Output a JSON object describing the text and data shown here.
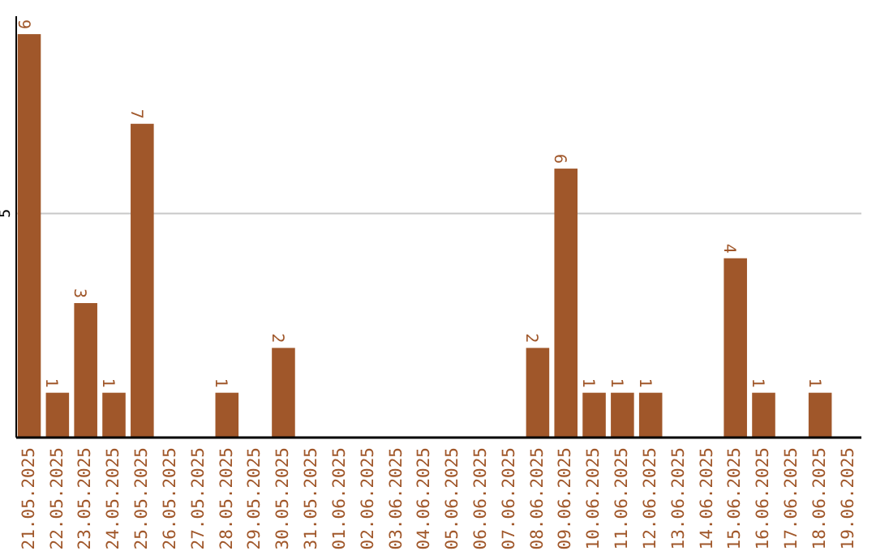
{
  "chart_data": {
    "type": "bar",
    "categories": [
      "21.05.2025",
      "22.05.2025",
      "23.05.2025",
      "24.05.2025",
      "25.05.2025",
      "26.05.2025",
      "27.05.2025",
      "28.05.2025",
      "29.05.2025",
      "30.05.2025",
      "31.05.2025",
      "01.06.2025",
      "02.06.2025",
      "03.06.2025",
      "04.06.2025",
      "05.06.2025",
      "06.06.2025",
      "07.06.2025",
      "08.06.2025",
      "09.06.2025",
      "10.06.2025",
      "11.06.2025",
      "12.06.2025",
      "13.06.2025",
      "14.06.2025",
      "15.06.2025",
      "16.06.2025",
      "17.06.2025",
      "18.06.2025",
      "19.06.2025"
    ],
    "values": [
      9,
      1,
      3,
      1,
      7,
      0,
      0,
      1,
      0,
      2,
      0,
      0,
      0,
      0,
      0,
      0,
      0,
      0,
      2,
      6,
      1,
      1,
      1,
      0,
      0,
      4,
      1,
      0,
      1,
      0
    ],
    "value_labels": [
      "9",
      "1",
      "3",
      "1",
      "7",
      null,
      null,
      "1",
      null,
      "2",
      null,
      null,
      null,
      null,
      null,
      null,
      null,
      null,
      "2",
      "6",
      "1",
      "1",
      "1",
      null,
      null,
      "4",
      "1",
      null,
      "1",
      null
    ],
    "color": "#a0572a",
    "ylim": [
      0,
      9.4
    ],
    "yticks": [
      5
    ],
    "grid": "y"
  }
}
